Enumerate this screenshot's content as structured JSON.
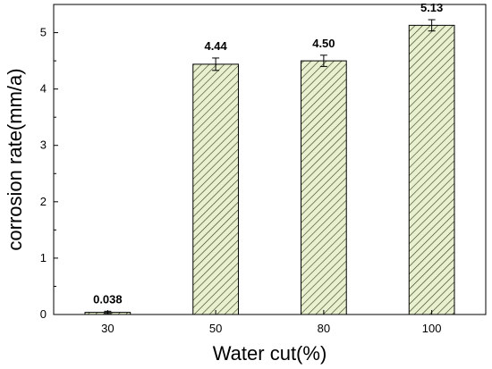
{
  "chart_data": {
    "type": "bar",
    "categories": [
      "30",
      "50",
      "80",
      "100"
    ],
    "values": [
      0.038,
      4.44,
      4.5,
      5.13
    ],
    "errors": [
      0.02,
      0.11,
      0.1,
      0.1
    ],
    "data_labels": [
      "0.038",
      "4.44",
      "4.50",
      "5.13"
    ],
    "xlabel": "Water cut(%)",
    "ylabel": "corrosion rate(mm/a)",
    "ylim": [
      0,
      5.5
    ],
    "yticks": [
      0,
      1,
      2,
      3,
      4,
      5
    ],
    "ytick_labels": [
      "0",
      "1",
      "2",
      "3",
      "4",
      "5"
    ],
    "grid": false,
    "legend": "none",
    "bar_fill_color": "#e8f0d0",
    "bar_hatch_color": "#2e3a1a",
    "bar_edge_color": "#000000"
  }
}
